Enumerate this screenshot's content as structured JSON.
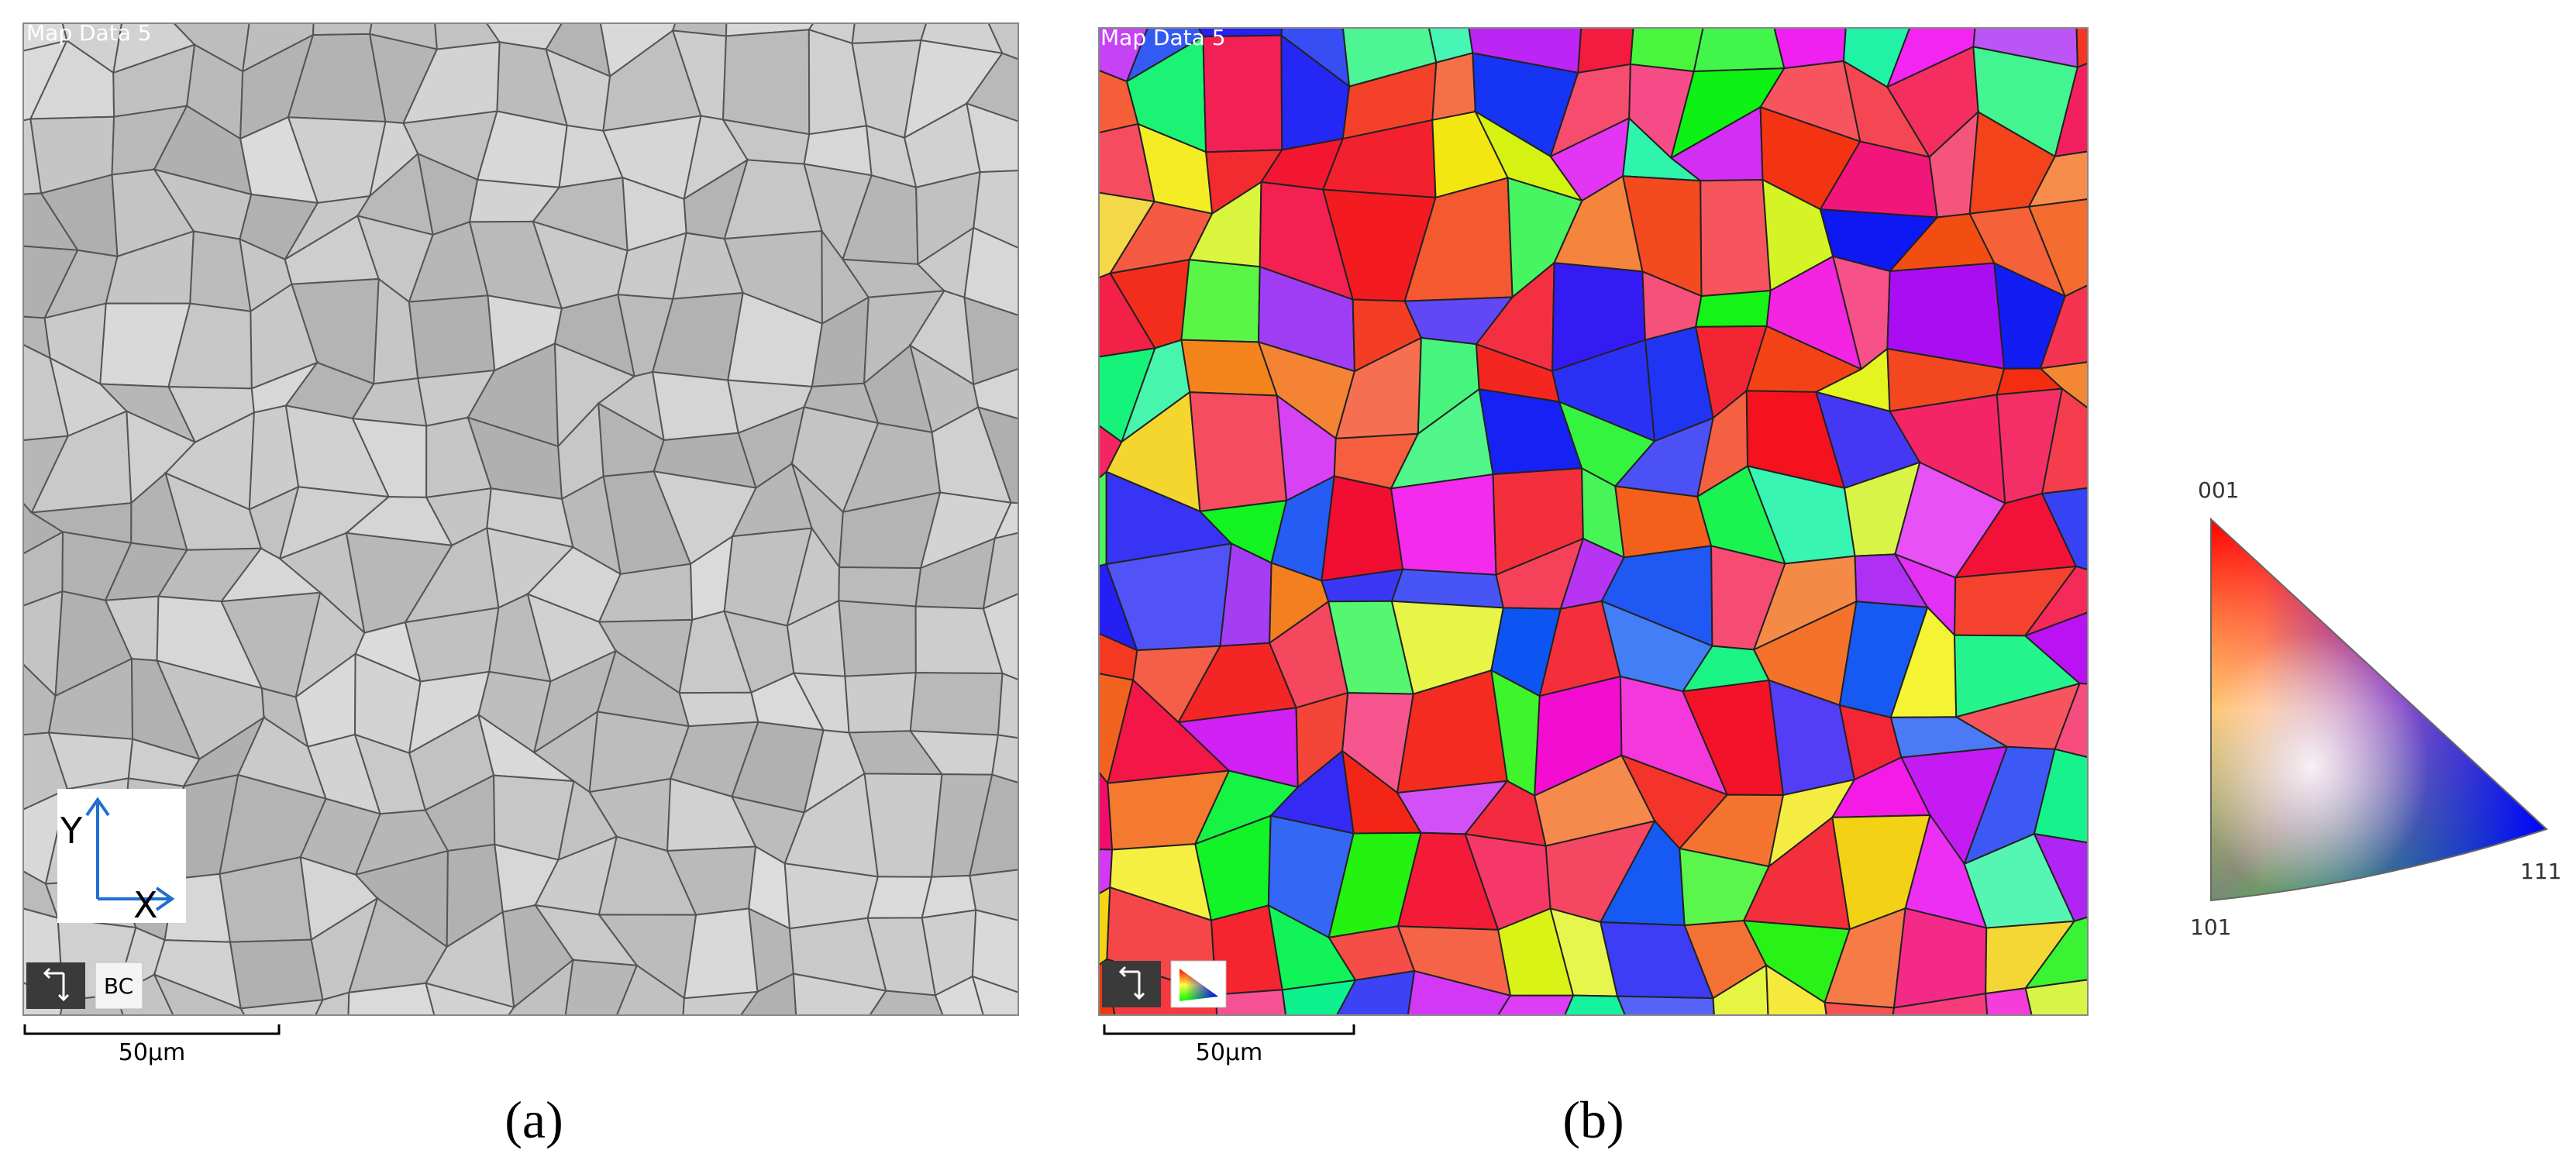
{
  "panels": [
    {
      "label": "(a)",
      "map_title": "Map Data 5",
      "axis_y": "Y",
      "axis_x": "X",
      "badge": "BC",
      "scale_bar": "50µm"
    },
    {
      "label": "(b)",
      "map_title": "Map Data 5",
      "scale_bar": "50µm"
    }
  ],
  "legend": {
    "top": "001",
    "left": "101",
    "right": "111"
  }
}
